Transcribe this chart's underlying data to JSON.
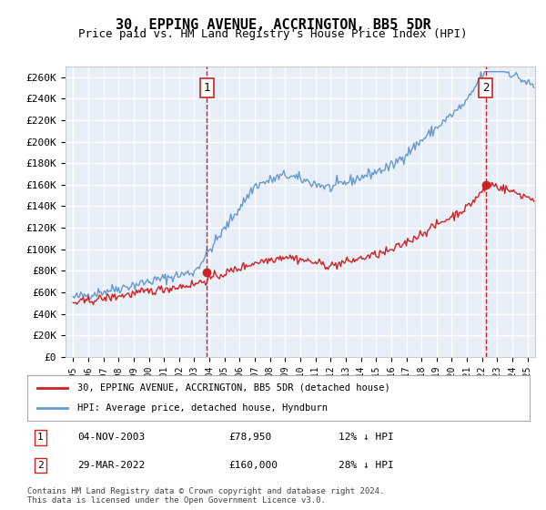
{
  "title": "30, EPPING AVENUE, ACCRINGTON, BB5 5DR",
  "subtitle": "Price paid vs. HM Land Registry's House Price Index (HPI)",
  "ylim": [
    0,
    270000
  ],
  "yticks": [
    0,
    20000,
    40000,
    60000,
    80000,
    100000,
    120000,
    140000,
    160000,
    180000,
    200000,
    220000,
    240000,
    260000
  ],
  "plot_bg": "#e8eef8",
  "grid_color": "#ffffff",
  "hpi_color": "#6699cc",
  "price_color": "#cc2222",
  "sale1_date": 2003.84,
  "sale1_price": 78950,
  "sale2_date": 2022.24,
  "sale2_price": 160000,
  "legend_label1": "30, EPPING AVENUE, ACCRINGTON, BB5 5DR (detached house)",
  "legend_label2": "HPI: Average price, detached house, Hyndburn",
  "footnote": "Contains HM Land Registry data © Crown copyright and database right 2024.\nThis data is licensed under the Open Government Licence v3.0.",
  "table_row1": [
    "1",
    "04-NOV-2003",
    "£78,950",
    "12% ↓ HPI"
  ],
  "table_row2": [
    "2",
    "29-MAR-2022",
    "£160,000",
    "28% ↓ HPI"
  ]
}
